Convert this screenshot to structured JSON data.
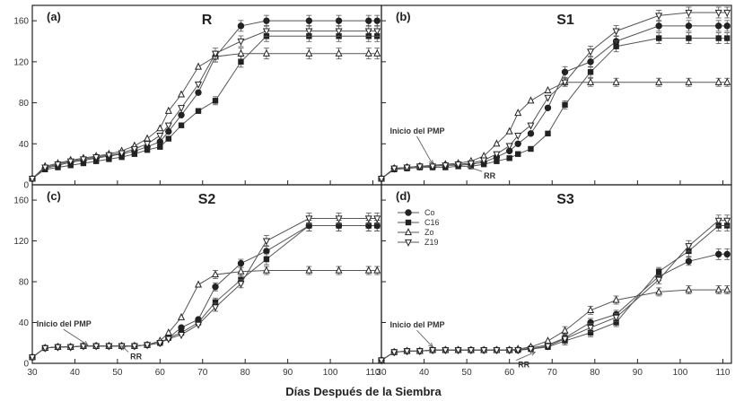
{
  "xlabel": "Días Después de la Siembra",
  "legend": {
    "placement": "inside-top-left of panel (d)",
    "entries": [
      {
        "name": "Co",
        "marker": "filled-circle"
      },
      {
        "name": "C16",
        "marker": "filled-square"
      },
      {
        "name": "Zo",
        "marker": "open-triangle-up"
      },
      {
        "name": "Z19",
        "marker": "open-triangle-down"
      }
    ]
  },
  "colors": {
    "line": "#555555",
    "axis": "#222222",
    "marker_fill": "#222222",
    "open_fill": "#ffffff"
  },
  "chart_data": [
    {
      "type": "line",
      "panel_label": "(a)",
      "title": "R",
      "xlim": [
        30,
        112
      ],
      "ylim": [
        0,
        175
      ],
      "x_ticks": [
        30,
        40,
        50,
        60,
        70,
        80,
        90,
        100,
        110
      ],
      "x_tick_labels": [],
      "y_ticks": [
        0,
        40,
        80,
        120,
        160
      ],
      "y_tick_labels": [
        "0",
        "40",
        "80",
        "120",
        "160"
      ],
      "annotations": [],
      "series": [
        {
          "name": "Co",
          "x": [
            30,
            33,
            36,
            39,
            42,
            45,
            48,
            51,
            54,
            57,
            60,
            62,
            65,
            69,
            73,
            79,
            85,
            95,
            102,
            109,
            111
          ],
          "y": [
            6,
            16,
            19,
            22,
            24,
            26,
            28,
            30,
            33,
            37,
            42,
            52,
            68,
            90,
            125,
            155,
            160,
            160,
            160,
            160,
            160
          ]
        },
        {
          "name": "C16",
          "x": [
            30,
            33,
            36,
            39,
            42,
            45,
            48,
            51,
            54,
            57,
            60,
            62,
            65,
            69,
            73,
            79,
            85,
            95,
            102,
            109,
            111
          ],
          "y": [
            6,
            15,
            17,
            19,
            21,
            23,
            25,
            27,
            30,
            34,
            37,
            45,
            58,
            72,
            82,
            120,
            145,
            145,
            145,
            145,
            145
          ]
        },
        {
          "name": "Zo",
          "x": [
            30,
            33,
            36,
            39,
            42,
            45,
            48,
            51,
            54,
            57,
            60,
            62,
            65,
            69,
            73,
            79,
            85,
            95,
            102,
            109,
            111
          ],
          "y": [
            6,
            18,
            21,
            24,
            26,
            28,
            30,
            33,
            38,
            45,
            55,
            72,
            88,
            115,
            125,
            128,
            128,
            128,
            128,
            128,
            128
          ]
        },
        {
          "name": "Z19",
          "x": [
            30,
            33,
            36,
            39,
            42,
            45,
            48,
            51,
            54,
            57,
            60,
            62,
            65,
            69,
            73,
            79,
            85,
            95,
            102,
            109,
            111
          ],
          "y": [
            6,
            17,
            20,
            23,
            25,
            27,
            29,
            31,
            35,
            40,
            48,
            58,
            75,
            98,
            128,
            140,
            150,
            150,
            150,
            150,
            150
          ]
        }
      ]
    },
    {
      "type": "line",
      "panel_label": "(b)",
      "title": "S1",
      "xlim": [
        30,
        112
      ],
      "ylim": [
        0,
        175
      ],
      "x_ticks": [
        30,
        40,
        50,
        60,
        70,
        80,
        90,
        100,
        110
      ],
      "x_tick_labels": [],
      "y_ticks": [
        0,
        40,
        80,
        120,
        160
      ],
      "y_tick_labels": [],
      "annotations": [
        {
          "text": "Inicio del PMP",
          "x": 42,
          "y": 20,
          "text_x": 32,
          "text_y": 50
        },
        {
          "text": "RR",
          "x": 50,
          "y": 18,
          "text_x": 54,
          "text_y": 6
        }
      ],
      "series": [
        {
          "name": "Co",
          "x": [
            30,
            33,
            36,
            39,
            42,
            45,
            48,
            51,
            54,
            57,
            60,
            62,
            65,
            69,
            73,
            79,
            85,
            95,
            102,
            109,
            111
          ],
          "y": [
            6,
            16,
            17,
            18,
            18,
            19,
            19,
            20,
            22,
            27,
            33,
            40,
            50,
            75,
            110,
            120,
            140,
            155,
            155,
            155,
            155
          ]
        },
        {
          "name": "C16",
          "x": [
            30,
            33,
            36,
            39,
            42,
            45,
            48,
            51,
            54,
            57,
            60,
            62,
            65,
            69,
            73,
            79,
            85,
            95,
            102,
            109,
            111
          ],
          "y": [
            6,
            15,
            16,
            17,
            17,
            17,
            18,
            18,
            20,
            23,
            26,
            30,
            35,
            50,
            78,
            110,
            135,
            143,
            143,
            143,
            143
          ]
        },
        {
          "name": "Zo",
          "x": [
            30,
            33,
            36,
            39,
            42,
            45,
            48,
            51,
            54,
            57,
            60,
            62,
            65,
            69,
            73,
            79,
            85,
            95,
            102,
            109,
            111
          ],
          "y": [
            6,
            16,
            17,
            18,
            19,
            20,
            21,
            23,
            28,
            40,
            52,
            70,
            82,
            92,
            100,
            100,
            100,
            100,
            100,
            100,
            100
          ]
        },
        {
          "name": "Z19",
          "x": [
            30,
            33,
            36,
            39,
            42,
            45,
            48,
            51,
            54,
            57,
            60,
            62,
            65,
            69,
            73,
            79,
            85,
            95,
            102,
            109,
            111
          ],
          "y": [
            6,
            16,
            17,
            18,
            18,
            19,
            20,
            21,
            24,
            30,
            38,
            48,
            58,
            85,
            100,
            130,
            150,
            165,
            168,
            168,
            168
          ]
        }
      ]
    },
    {
      "type": "line",
      "panel_label": "(c)",
      "title": "S2",
      "xlim": [
        30,
        112
      ],
      "ylim": [
        0,
        175
      ],
      "x_ticks": [
        30,
        40,
        50,
        60,
        70,
        80,
        90,
        100,
        110
      ],
      "x_tick_labels": [
        "30",
        "40",
        "50",
        "60",
        "70",
        "80",
        "90",
        "100",
        "110"
      ],
      "y_ticks": [
        0,
        40,
        80,
        120,
        160
      ],
      "y_tick_labels": [
        "0",
        "40",
        "80",
        "120",
        "160"
      ],
      "annotations": [
        {
          "text": "Inicio del PMP",
          "x": 43,
          "y": 18,
          "text_x": 31,
          "text_y": 36
        },
        {
          "text": "RR",
          "x": 51,
          "y": 17,
          "text_x": 53,
          "text_y": 4
        }
      ],
      "series": [
        {
          "name": "Co",
          "x": [
            30,
            33,
            36,
            39,
            42,
            45,
            48,
            51,
            54,
            57,
            60,
            62,
            65,
            69,
            73,
            79,
            85,
            95,
            102,
            109,
            111
          ],
          "y": [
            6,
            15,
            16,
            16,
            17,
            17,
            17,
            17,
            17,
            18,
            20,
            25,
            35,
            43,
            75,
            98,
            110,
            135,
            135,
            135,
            135
          ]
        },
        {
          "name": "C16",
          "x": [
            30,
            33,
            36,
            39,
            42,
            45,
            48,
            51,
            54,
            57,
            60,
            62,
            65,
            69,
            73,
            79,
            85,
            95,
            102,
            109,
            111
          ],
          "y": [
            6,
            15,
            16,
            16,
            17,
            17,
            17,
            17,
            17,
            18,
            20,
            25,
            30,
            40,
            60,
            82,
            102,
            135,
            135,
            135,
            135
          ]
        },
        {
          "name": "Zo",
          "x": [
            30,
            33,
            36,
            39,
            42,
            45,
            48,
            51,
            54,
            57,
            60,
            62,
            65,
            69,
            73,
            79,
            85,
            95,
            102,
            109,
            111
          ],
          "y": [
            6,
            15,
            16,
            16,
            17,
            17,
            17,
            17,
            17,
            18,
            22,
            30,
            45,
            77,
            87,
            90,
            91,
            91,
            91,
            91,
            91
          ]
        },
        {
          "name": "Z19",
          "x": [
            30,
            33,
            36,
            39,
            42,
            45,
            48,
            51,
            54,
            57,
            60,
            62,
            65,
            69,
            73,
            79,
            85,
            95,
            102,
            109,
            111
          ],
          "y": [
            6,
            15,
            16,
            16,
            17,
            17,
            17,
            17,
            17,
            18,
            20,
            24,
            28,
            38,
            55,
            78,
            120,
            142,
            142,
            142,
            142
          ]
        }
      ]
    },
    {
      "type": "line",
      "panel_label": "(d)",
      "title": "S3",
      "xlim": [
        30,
        112
      ],
      "ylim": [
        0,
        175
      ],
      "x_ticks": [
        30,
        40,
        50,
        60,
        70,
        80,
        90,
        100,
        110
      ],
      "x_tick_labels": [
        "30",
        "40",
        "50",
        "60",
        "70",
        "80",
        "90",
        "100",
        "110"
      ],
      "y_ticks": [
        0,
        40,
        80,
        120,
        160
      ],
      "y_tick_labels": [],
      "annotations": [
        {
          "text": "Inicio del PMP",
          "x": 42,
          "y": 16,
          "text_x": 32,
          "text_y": 35
        },
        {
          "text": "RR",
          "x": 66,
          "y": 11,
          "text_x": 62,
          "text_y": -4
        }
      ],
      "series": [
        {
          "name": "Co",
          "x": [
            30,
            33,
            36,
            39,
            42,
            45,
            48,
            51,
            54,
            57,
            60,
            62,
            65,
            69,
            73,
            79,
            85,
            95,
            102,
            109,
            111
          ],
          "y": [
            3,
            11,
            12,
            12,
            13,
            13,
            13,
            13,
            13,
            13,
            13,
            13,
            15,
            18,
            25,
            40,
            48,
            85,
            100,
            107,
            107
          ]
        },
        {
          "name": "C16",
          "x": [
            30,
            33,
            36,
            39,
            42,
            45,
            48,
            51,
            54,
            57,
            60,
            62,
            65,
            69,
            73,
            79,
            85,
            95,
            102,
            109,
            111
          ],
          "y": [
            3,
            11,
            12,
            12,
            13,
            13,
            13,
            13,
            13,
            13,
            13,
            13,
            14,
            16,
            22,
            30,
            40,
            90,
            110,
            135,
            135
          ]
        },
        {
          "name": "Zo",
          "x": [
            30,
            33,
            36,
            39,
            42,
            45,
            48,
            51,
            54,
            57,
            60,
            62,
            65,
            69,
            73,
            79,
            85,
            95,
            102,
            109,
            111
          ],
          "y": [
            3,
            11,
            12,
            12,
            13,
            13,
            13,
            13,
            13,
            13,
            13,
            14,
            16,
            22,
            32,
            52,
            62,
            70,
            72,
            72,
            72
          ]
        },
        {
          "name": "Z19",
          "x": [
            30,
            33,
            36,
            39,
            42,
            45,
            48,
            51,
            54,
            57,
            60,
            62,
            65,
            69,
            73,
            79,
            85,
            95,
            102,
            109,
            111
          ],
          "y": [
            3,
            11,
            12,
            12,
            13,
            13,
            13,
            13,
            13,
            13,
            13,
            13,
            14,
            17,
            24,
            35,
            45,
            82,
            115,
            140,
            140
          ]
        }
      ]
    }
  ]
}
